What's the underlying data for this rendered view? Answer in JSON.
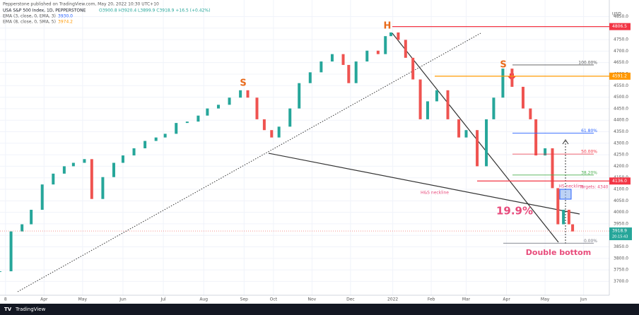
{
  "chart_data": {
    "type": "candlestick",
    "published": "Pepperstone published on TradingView.com, May 20, 2022 10:30 UTC+10",
    "symbol": "USA S&P 500 Index, 1D, PEPPERSTONE",
    "ohlc_text": "O3900.8 H3920.4 L3899.9 C3918.9 +16.5 (+0.42%)",
    "indicators": [
      {
        "name": "EMA (3, close, 0, EMA, 3)",
        "value_label": "3930.0",
        "color": "#2962ff"
      },
      {
        "name": "EMA (8, close, 0, SMA, 5)",
        "value_label": "3974.2",
        "color": "#ff9800"
      }
    ],
    "currency": "USD",
    "x": [
      0,
      6,
      12,
      17,
      23,
      29,
      35,
      40,
      46,
      50,
      56,
      62,
      67,
      73,
      79,
      85,
      90,
      96,
      102,
      108,
      113,
      119,
      125,
      131,
      135,
      140,
      144,
      148,
      152,
      158,
      163,
      169,
      175,
      181,
      187,
      190,
      194,
      200,
      206,
      210,
      213,
      217,
      221,
      225,
      229,
      233,
      238,
      244,
      250,
      254,
      260,
      265,
      269,
      274,
      279,
      285,
      289,
      292,
      297,
      301,
      304,
      307,
      310,
      312
    ],
    "values": [
      3744,
      3917,
      3948,
      4011,
      4121,
      4168,
      4200,
      4215,
      4231,
      4058,
      4153,
      4215,
      4247,
      4278,
      4310,
      4325,
      4341,
      4388,
      4394,
      4420,
      4451,
      4467,
      4498,
      4530,
      4498,
      4404,
      4357,
      4325,
      4372,
      4451,
      4561,
      4608,
      4655,
      4687,
      4640,
      4561,
      4655,
      4702,
      4687,
      4765,
      4781,
      4749,
      4671,
      4577,
      4404,
      4482,
      4530,
      4404,
      4325,
      4357,
      4200,
      4404,
      4498,
      4624,
      4545,
      4451,
      4404,
      4247,
      4278,
      4105,
      3948,
      4011,
      3948,
      3917
    ],
    "colors": {
      "up": "#26a69a",
      "down": "#ef5350"
    },
    "xlim": [
      0,
      332
    ],
    "ylim": [
      3640,
      4922
    ],
    "xticks": [
      {
        "value": 3,
        "label": "8"
      },
      {
        "value": 24,
        "label": "Apr"
      },
      {
        "value": 45,
        "label": "May"
      },
      {
        "value": 67,
        "label": "Jun"
      },
      {
        "value": 89,
        "label": "Jul"
      },
      {
        "value": 111,
        "label": "Aug"
      },
      {
        "value": 133,
        "label": "Sep"
      },
      {
        "value": 149,
        "label": "Oct"
      },
      {
        "value": 170,
        "label": "Nov"
      },
      {
        "value": 191,
        "label": "Dec"
      },
      {
        "value": 214,
        "label": "2022"
      },
      {
        "value": 235,
        "label": "Feb"
      },
      {
        "value": 254,
        "label": "Mar"
      },
      {
        "value": 276,
        "label": "Apr"
      },
      {
        "value": 297,
        "label": "May"
      },
      {
        "value": 318,
        "label": "Jun"
      }
    ],
    "yticks": [
      {
        "value": 3700,
        "label": "3700.0"
      },
      {
        "value": 3750,
        "label": "3750.0"
      },
      {
        "value": 3800,
        "label": "3800.0"
      },
      {
        "value": 3850,
        "label": "3850.0"
      },
      {
        "value": 3900,
        "label": "3900.0"
      },
      {
        "value": 3950,
        "label": "3950.0"
      },
      {
        "value": 4000,
        "label": "4000.0"
      },
      {
        "value": 4050,
        "label": "4050.0"
      },
      {
        "value": 4100,
        "label": "4100.0"
      },
      {
        "value": 4150,
        "label": "4150.0"
      },
      {
        "value": 4200,
        "label": "4200.0"
      },
      {
        "value": 4250,
        "label": "4250.0"
      },
      {
        "value": 4300,
        "label": "4300.0"
      },
      {
        "value": 4350,
        "label": "4350.0"
      },
      {
        "value": 4400,
        "label": "4400.0"
      },
      {
        "value": 4450,
        "label": "4450.0"
      },
      {
        "value": 4500,
        "label": "4500.0"
      },
      {
        "value": 4550,
        "label": "4550.0"
      },
      {
        "value": 4600,
        "label": "4600.0"
      },
      {
        "value": 4650,
        "label": "4650.0"
      },
      {
        "value": 4700,
        "label": "4700.0"
      },
      {
        "value": 4750,
        "label": "4750.0"
      },
      {
        "value": 4800,
        "label": "4800.0"
      },
      {
        "value": 4850,
        "label": "4850.0"
      }
    ],
    "price_lines": [
      {
        "value": 4806.5,
        "label": "4806.5",
        "color": "#f23645"
      },
      {
        "value": 4591.2,
        "label": "4591.2",
        "color": "#ff9800"
      },
      {
        "value": 4136.0,
        "label": "4136.0",
        "color": "#f23645"
      }
    ],
    "last_price": {
      "value": 3918.9,
      "label": "3918.9",
      "countdown": "20:15:43"
    },
    "fib_levels": [
      {
        "value": 4640,
        "label": "100.00%",
        "color": "#555555"
      },
      {
        "value": 4344,
        "label": "61.80%",
        "color": "#2962ff"
      },
      {
        "value": 4253,
        "label": "50.00%",
        "color": "#f23645"
      },
      {
        "value": 4162,
        "label": "38.20%",
        "color": "#4caf50"
      },
      {
        "value": 3866,
        "label": "0.00%",
        "color": "#787b86"
      }
    ],
    "annotations": {
      "head": "H",
      "shoulder_left": "S",
      "shoulder_right": "S",
      "neckline": "H&S neckline",
      "neckline_short": "HS neckline",
      "targets": "Targets: 4340",
      "drop": "19.9%",
      "double_bottom": "Double bottom"
    },
    "footer": "TradingView"
  }
}
